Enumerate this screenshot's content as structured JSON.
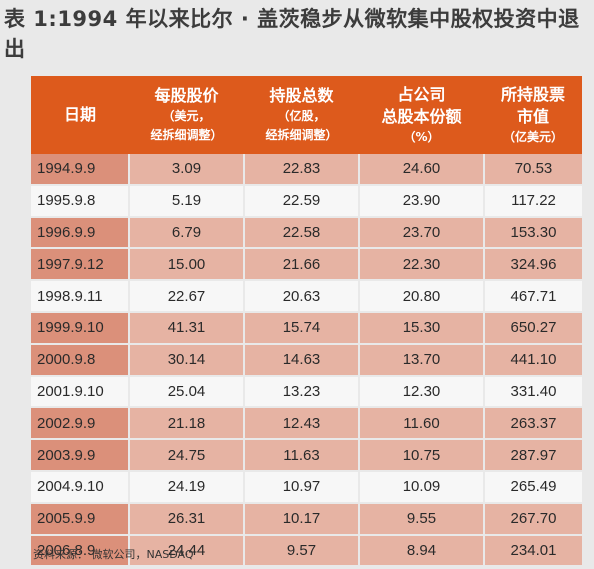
{
  "title": "表 1:1994 年以来比尔 · 盖茨稳步从微软集中股权投资中退出",
  "table": {
    "headers": [
      {
        "line1": "日期",
        "line2": "",
        "line3": ""
      },
      {
        "line1": "每股股价",
        "line2": "（美元，",
        "line3": "经拆细调整）"
      },
      {
        "line1": "持股总数",
        "line2": "（亿股，",
        "line3": "经拆细调整）"
      },
      {
        "line1": "占公司",
        "line2": "总股本份额",
        "line3": "（%）"
      },
      {
        "line1": "所持股票",
        "line2": "市值",
        "line3": "（亿美元）"
      }
    ],
    "rows": [
      {
        "shade": true,
        "cells": [
          "1994.9.9",
          "3.09",
          "22.83",
          "24.60",
          "70.53"
        ]
      },
      {
        "shade": false,
        "cells": [
          "1995.9.8",
          "5.19",
          "22.59",
          "23.90",
          "117.22"
        ]
      },
      {
        "shade": true,
        "cells": [
          "1996.9.9",
          "6.79",
          "22.58",
          "23.70",
          "153.30"
        ]
      },
      {
        "shade": true,
        "cells": [
          "1997.9.12",
          "15.00",
          "21.66",
          "22.30",
          "324.96"
        ]
      },
      {
        "shade": false,
        "cells": [
          "1998.9.11",
          "22.67",
          "20.63",
          "20.80",
          "467.71"
        ]
      },
      {
        "shade": true,
        "cells": [
          "1999.9.10",
          "41.31",
          "15.74",
          "15.30",
          "650.27"
        ]
      },
      {
        "shade": true,
        "cells": [
          "2000.9.8",
          "30.14",
          "14.63",
          "13.70",
          "441.10"
        ]
      },
      {
        "shade": false,
        "cells": [
          "2001.9.10",
          "25.04",
          "13.23",
          "12.30",
          "331.40"
        ]
      },
      {
        "shade": true,
        "cells": [
          "2002.9.9",
          "21.18",
          "12.43",
          "11.60",
          "263.37"
        ]
      },
      {
        "shade": true,
        "cells": [
          "2003.9.9",
          "24.75",
          "11.63",
          "10.75",
          "287.97"
        ]
      },
      {
        "shade": false,
        "cells": [
          "2004.9.10",
          "24.19",
          "10.97",
          "10.09",
          "265.49"
        ]
      },
      {
        "shade": true,
        "cells": [
          "2005.9.9",
          "26.31",
          "10.17",
          "9.55",
          "267.70"
        ]
      },
      {
        "shade": true,
        "cells": [
          "2006.8.9",
          "24.44",
          "9.57",
          "8.94",
          "234.01"
        ]
      }
    ]
  },
  "source": "资料来源：  微软公司，NASDAQ",
  "colors": {
    "header_bg": "#dd5a1c",
    "row_shade": "#e6b3a3",
    "row_shade_first": "#db907a",
    "row_plain": "#f7f7f7",
    "page_bg": "#e9e9e9"
  }
}
